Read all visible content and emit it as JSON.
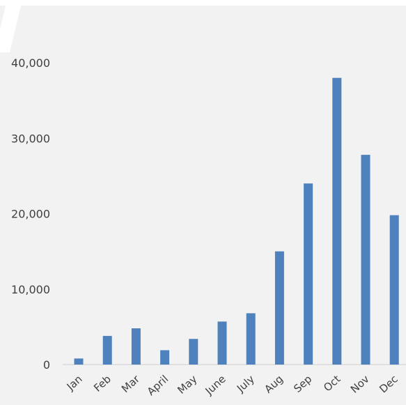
{
  "chart_data": {
    "type": "bar",
    "title": "",
    "xlabel": "",
    "ylabel": "",
    "categories": [
      "Jan",
      "Feb",
      "Mar",
      "April",
      "May",
      "June",
      "July",
      "Aug",
      "Sep",
      "Oct",
      "Nov",
      "Dec"
    ],
    "series": [
      {
        "values": [
          800,
          3800,
          4800,
          1900,
          3400,
          5700,
          6800,
          15000,
          24000,
          38000,
          27800,
          19800
        ],
        "color": "#4f81bd"
      }
    ],
    "ylim": [
      0,
      40000
    ],
    "yticks": [
      0,
      10000,
      20000,
      30000,
      40000
    ],
    "ytick_labels": [
      "0",
      "10,000",
      "20,000",
      "30,000",
      "40,000"
    ],
    "grid": false,
    "legend": "none",
    "background_color": "#f2f2f2",
    "axis_color": "#d9d9d9"
  }
}
